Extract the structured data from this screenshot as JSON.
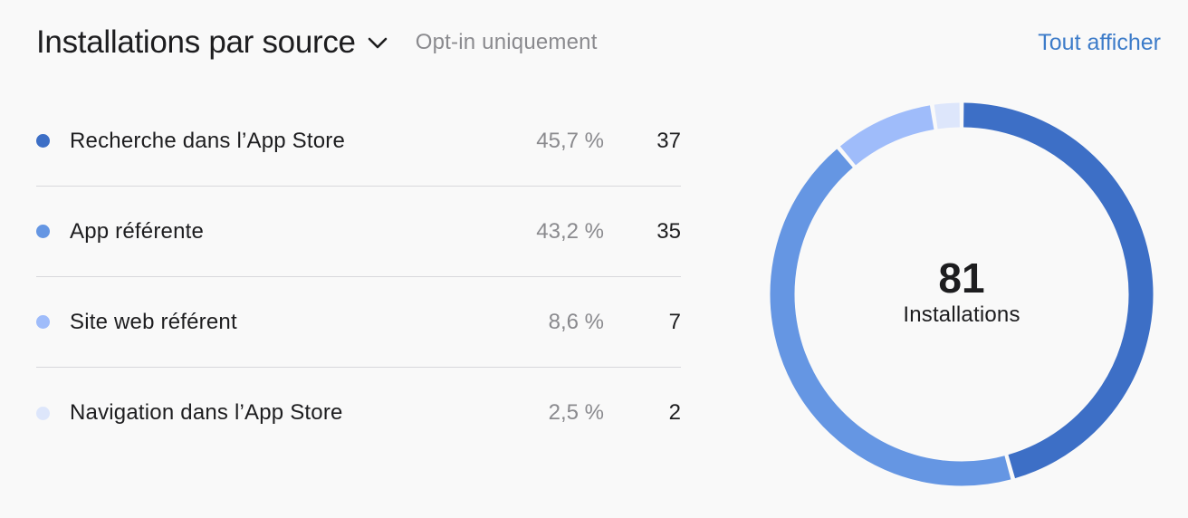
{
  "header": {
    "title": "Installations par source",
    "subtitle": "Opt-in uniquement",
    "view_all": "Tout afficher"
  },
  "chart_data": {
    "type": "pie",
    "title": "Installations par source",
    "subtitle": "Opt-in uniquement",
    "categories": [
      "Recherche dans l’App Store",
      "App référente",
      "Site web référent",
      "Navigation dans l’App Store"
    ],
    "values": [
      37,
      35,
      7,
      2
    ],
    "percents": [
      "45,7 %",
      "43,2 %",
      "8,6 %",
      "2,5 %"
    ],
    "colors": [
      "#3d6fc6",
      "#6596e3",
      "#9fbcfa",
      "#dde6fb"
    ],
    "total": "81",
    "total_label": "Installations",
    "donut": true,
    "legend_position": "left"
  }
}
